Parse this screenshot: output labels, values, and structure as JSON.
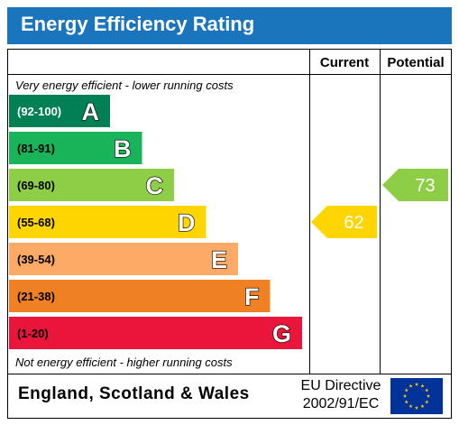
{
  "title": "Energy Efficiency Rating",
  "columns": {
    "current": "Current",
    "potential": "Potential"
  },
  "top_note": "Very energy efficient - lower running costs",
  "bottom_note": "Not energy efficient - higher running costs",
  "footer": {
    "region": "England, Scotland & Wales",
    "directive_line1": "EU Directive",
    "directive_line2": "2002/91/EC"
  },
  "chart_data": {
    "type": "bar",
    "bands": [
      {
        "range": "(92-100)",
        "letter": "A",
        "color": "#008054"
      },
      {
        "range": "(81-91)",
        "letter": "B",
        "color": "#19b459"
      },
      {
        "range": "(69-80)",
        "letter": "C",
        "color": "#8dce46"
      },
      {
        "range": "(55-68)",
        "letter": "D",
        "color": "#ffd500"
      },
      {
        "range": "(39-54)",
        "letter": "E",
        "color": "#fcaa65"
      },
      {
        "range": "(21-38)",
        "letter": "F",
        "color": "#ef8023"
      },
      {
        "range": "(1-20)",
        "letter": "G",
        "color": "#e9153b"
      }
    ],
    "current": {
      "value": 62,
      "band": "D",
      "color": "#ffd500"
    },
    "potential": {
      "value": 73,
      "band": "C",
      "color": "#8dce46"
    }
  },
  "eu_flag_icon": "eu-stars-flag",
  "colors": {
    "header": "#1a75bc",
    "flag": "#003399",
    "stars": "#ffcc00"
  }
}
